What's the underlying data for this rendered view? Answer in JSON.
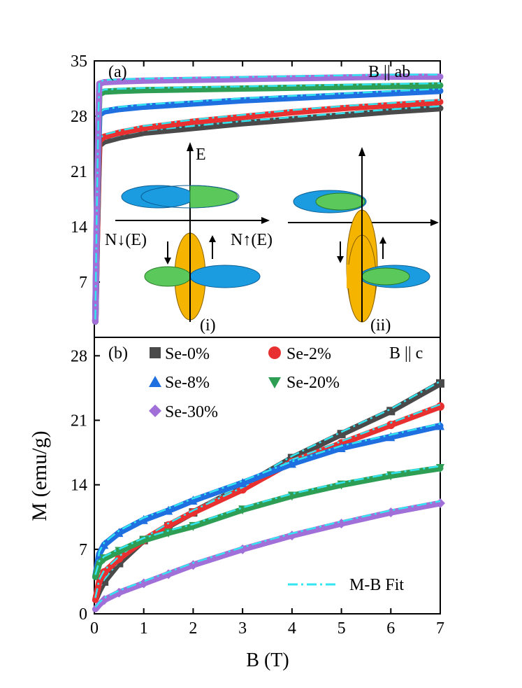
{
  "figure": {
    "ylabel": "M (emu/g)",
    "xlabel": "B (T)"
  },
  "chart_data": [
    {
      "panel": "(a)",
      "type": "line",
      "title": "B || ab",
      "xlabel": "B (T)",
      "ylabel": "M (emu/g)",
      "xlim": [
        0,
        7
      ],
      "ylim": [
        0,
        35
      ],
      "yticks": [
        7,
        14,
        21,
        28,
        35
      ],
      "series": [
        {
          "name": "Se-0%",
          "color": "#4a4a4a",
          "x": [
            0.02,
            0.05,
            0.08,
            0.1,
            0.2,
            0.5,
            1,
            2,
            3,
            4,
            5,
            6,
            7
          ],
          "y": [
            2,
            12,
            20,
            24.3,
            24.8,
            25.3,
            25.9,
            26.5,
            27.1,
            27.6,
            28.1,
            28.6,
            29.0
          ]
        },
        {
          "name": "Se-2%",
          "color": "#e83030",
          "x": [
            0.02,
            0.05,
            0.08,
            0.1,
            0.2,
            0.5,
            1,
            2,
            3,
            4,
            5,
            6,
            7
          ],
          "y": [
            2,
            12,
            21,
            24.9,
            25.4,
            25.9,
            26.5,
            27.3,
            27.9,
            28.5,
            29.0,
            29.4,
            29.8
          ]
        },
        {
          "name": "Se-8%",
          "color": "#1f6fe0",
          "x": [
            0.02,
            0.05,
            0.08,
            0.1,
            0.2,
            0.5,
            1,
            2,
            3,
            4,
            5,
            6,
            7
          ],
          "y": [
            2,
            14,
            24,
            28.2,
            28.6,
            28.9,
            29.2,
            29.6,
            30.0,
            30.3,
            30.6,
            30.9,
            31.2
          ]
        },
        {
          "name": "Se-20%",
          "color": "#2e9e55",
          "x": [
            0.02,
            0.05,
            0.08,
            0.1,
            0.2,
            0.5,
            1,
            2,
            3,
            4,
            5,
            6,
            7
          ],
          "y": [
            2,
            15,
            26,
            30.8,
            31.1,
            31.2,
            31.3,
            31.4,
            31.5,
            31.6,
            31.7,
            31.8,
            31.9
          ]
        },
        {
          "name": "Se-30%",
          "color": "#a070d8",
          "x": [
            0.02,
            0.05,
            0.08,
            0.1,
            0.2,
            0.5,
            1,
            2,
            3,
            4,
            5,
            6,
            7
          ],
          "y": [
            2,
            16,
            27,
            32.1,
            32.3,
            32.4,
            32.5,
            32.6,
            32.7,
            32.8,
            32.9,
            33.0,
            33.0
          ]
        }
      ],
      "inset": {
        "axis_label_energy": "E",
        "label_down": "N↓(E)",
        "label_up": "N↑(E)",
        "case_i": "(i)",
        "case_ii": "(ii)"
      }
    },
    {
      "panel": "(b)",
      "type": "line",
      "title": "B || c",
      "xlabel": "B (T)",
      "ylabel": "M (emu/g)",
      "xlim": [
        0,
        7
      ],
      "ylim": [
        0,
        30
      ],
      "xticks": [
        0,
        1,
        2,
        3,
        4,
        5,
        6,
        7
      ],
      "yticks": [
        0,
        7,
        14,
        21,
        28
      ],
      "legend": [
        "Se-0%",
        "Se-2%",
        "Se-8%",
        "Se-20%",
        "Se-30%"
      ],
      "fit_label": "M-B Fit",
      "series": [
        {
          "name": "Se-0%",
          "color": "#4a4a4a",
          "marker": "square",
          "x": [
            0.02,
            0.1,
            0.2,
            0.5,
            1,
            1.5,
            2,
            3,
            4,
            5,
            6,
            7
          ],
          "y": [
            1.5,
            2.5,
            3.5,
            5.5,
            8,
            9.5,
            11,
            13.8,
            16.9,
            19.5,
            22,
            25
          ]
        },
        {
          "name": "Se-2%",
          "color": "#e83030",
          "marker": "circle",
          "x": [
            0.02,
            0.1,
            0.2,
            0.5,
            1,
            1.5,
            2,
            3,
            4,
            5,
            6,
            7
          ],
          "y": [
            1.5,
            3.5,
            4.5,
            6,
            8,
            9.6,
            11,
            13.5,
            16.5,
            18.5,
            20.5,
            22.5
          ]
        },
        {
          "name": "Se-8%",
          "color": "#1f6fe0",
          "marker": "triangle-up",
          "x": [
            0.02,
            0.1,
            0.2,
            0.5,
            1,
            1.5,
            2,
            3,
            4,
            5,
            6,
            7
          ],
          "y": [
            4,
            6.5,
            7.5,
            8.8,
            10.2,
            11.2,
            12.3,
            14.2,
            16.3,
            18,
            19.2,
            20.4
          ]
        },
        {
          "name": "Se-20%",
          "color": "#2e9e55",
          "marker": "triangle-down",
          "x": [
            0.02,
            0.1,
            0.2,
            0.5,
            1,
            1.5,
            2,
            3,
            4,
            5,
            6,
            7
          ],
          "y": [
            4,
            5.5,
            6,
            6.8,
            8,
            8.8,
            9.5,
            11.3,
            12.8,
            14,
            15,
            15.8
          ]
        },
        {
          "name": "Se-30%",
          "color": "#a070d8",
          "marker": "diamond",
          "x": [
            0.02,
            0.1,
            0.2,
            0.5,
            1,
            1.5,
            2,
            3,
            4,
            5,
            6,
            7
          ],
          "y": [
            0.5,
            1,
            1.5,
            2.3,
            3.3,
            4.3,
            5.3,
            7,
            8.5,
            9.8,
            11,
            12
          ]
        }
      ]
    }
  ]
}
